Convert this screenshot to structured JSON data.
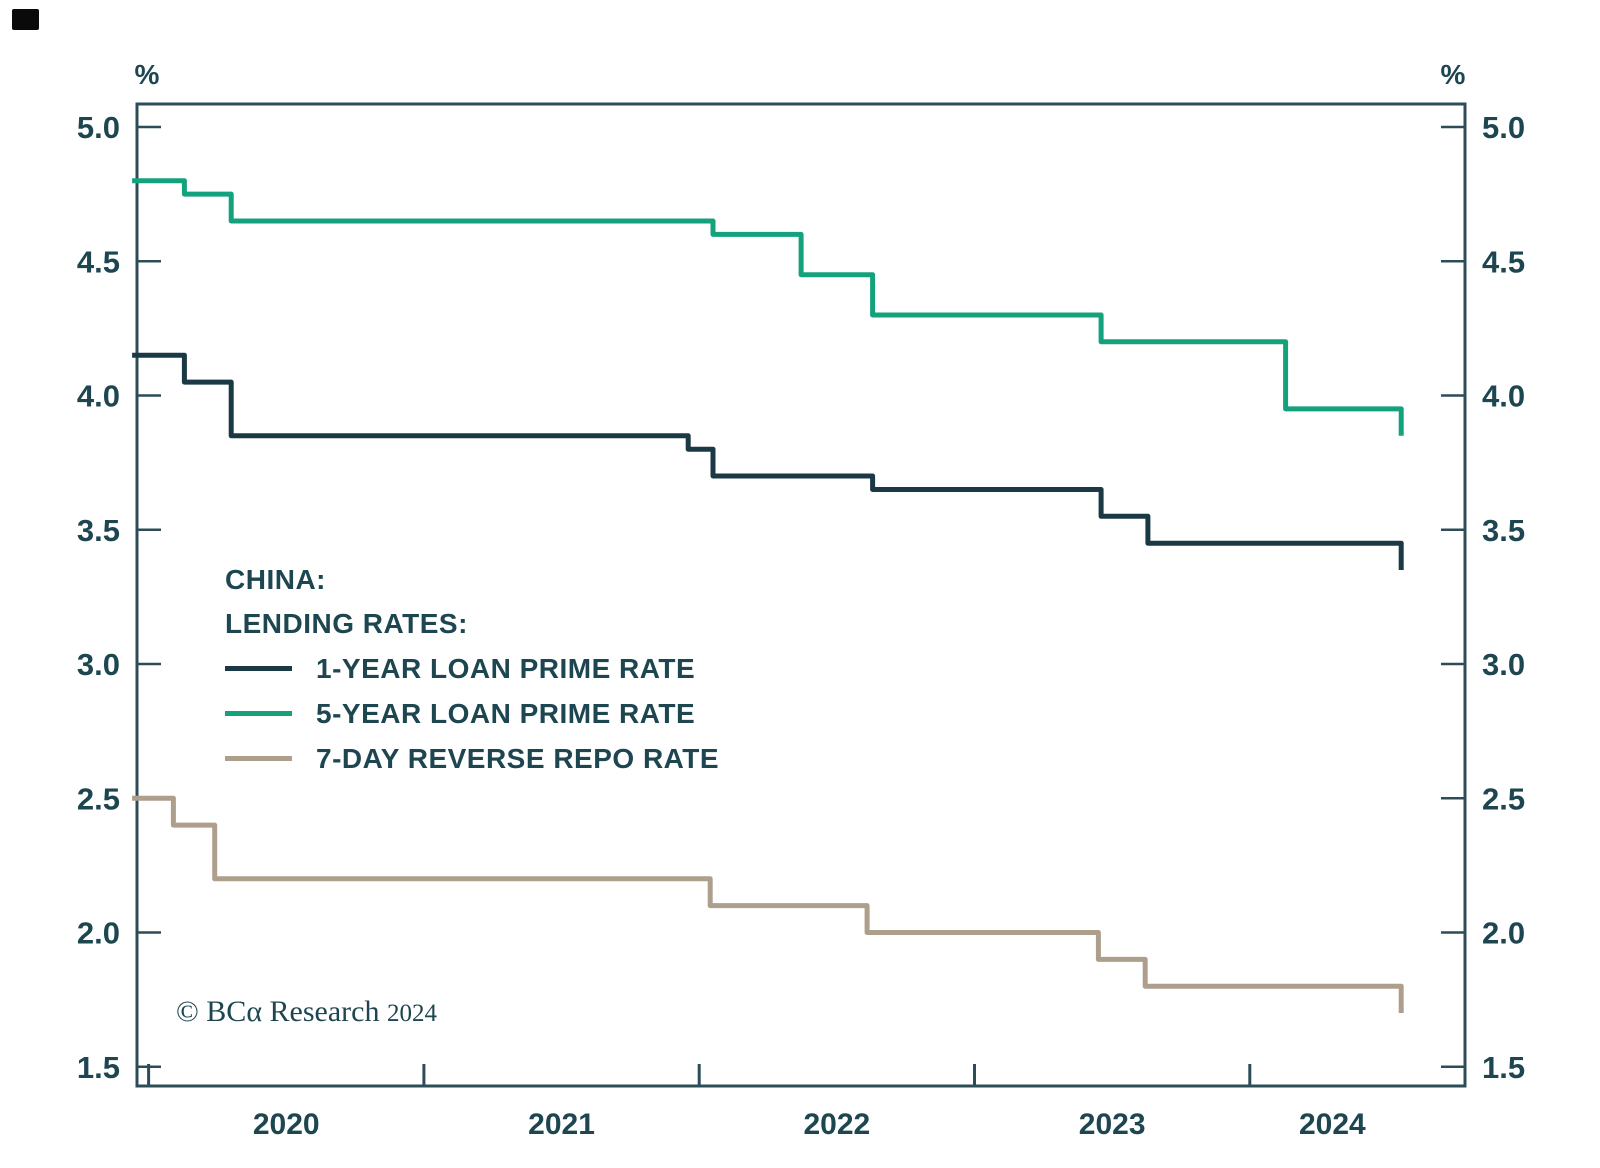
{
  "figure": {
    "unit_label_left": "%",
    "unit_label_right": "%",
    "copyright_brand": "© BCα Research",
    "copyright_year": "2024",
    "text_color": "#1d4650",
    "axis_color": "#2c4d57"
  },
  "legend": {
    "title_line1": "CHINA:",
    "title_line2": "LENDING RATES:",
    "items": [
      {
        "label": "1-YEAR LOAN PRIME RATE",
        "color": "#1b3944"
      },
      {
        "label": "5-YEAR LOAN PRIME RATE",
        "color": "#14a27c"
      },
      {
        "label": "7-DAY REVERSE REPO RATE",
        "color": "#ae9f8d"
      }
    ]
  },
  "chart_data": {
    "type": "line",
    "subtype": "step",
    "title": "China: Lending Rates",
    "grid": false,
    "legend_position": "inside-middle-left",
    "x_axis": {
      "range": [
        2019.94,
        2024.78
      ],
      "tick_years": [
        2020,
        2021,
        2022,
        2023,
        2024
      ],
      "tick_labels": [
        "2020",
        "2021",
        "2022",
        "2023",
        "2024"
      ]
    },
    "y_axis": {
      "min": 1.5,
      "max": 5.0,
      "tick_step": 0.5,
      "unit": "%",
      "labels_both_sides": true,
      "tick_labels": [
        "5.0",
        "4.5",
        "4.0",
        "3.5",
        "3.0",
        "2.5",
        "2.0",
        "1.5"
      ]
    },
    "series": [
      {
        "name": "1-YEAR LOAN PRIME RATE",
        "color": "#1b3944",
        "steps": [
          [
            2019.94,
            4.15
          ],
          [
            2020.13,
            4.05
          ],
          [
            2020.3,
            3.85
          ],
          [
            2021.96,
            3.8
          ],
          [
            2022.05,
            3.7
          ],
          [
            2022.63,
            3.65
          ],
          [
            2023.46,
            3.55
          ],
          [
            2023.63,
            3.45
          ],
          [
            2024.55,
            3.35
          ]
        ]
      },
      {
        "name": "5-YEAR LOAN PRIME RATE",
        "color": "#14a27c",
        "steps": [
          [
            2019.94,
            4.8
          ],
          [
            2020.13,
            4.75
          ],
          [
            2020.3,
            4.65
          ],
          [
            2022.05,
            4.6
          ],
          [
            2022.37,
            4.45
          ],
          [
            2022.63,
            4.3
          ],
          [
            2023.46,
            4.2
          ],
          [
            2024.13,
            3.95
          ],
          [
            2024.55,
            3.85
          ]
        ]
      },
      {
        "name": "7-DAY REVERSE REPO RATE",
        "color": "#ae9f8d",
        "steps": [
          [
            2019.94,
            2.5
          ],
          [
            2020.09,
            2.4
          ],
          [
            2020.24,
            2.2
          ],
          [
            2022.04,
            2.1
          ],
          [
            2022.61,
            2.0
          ],
          [
            2023.45,
            1.9
          ],
          [
            2023.62,
            1.8
          ],
          [
            2024.55,
            1.7
          ]
        ]
      }
    ]
  }
}
